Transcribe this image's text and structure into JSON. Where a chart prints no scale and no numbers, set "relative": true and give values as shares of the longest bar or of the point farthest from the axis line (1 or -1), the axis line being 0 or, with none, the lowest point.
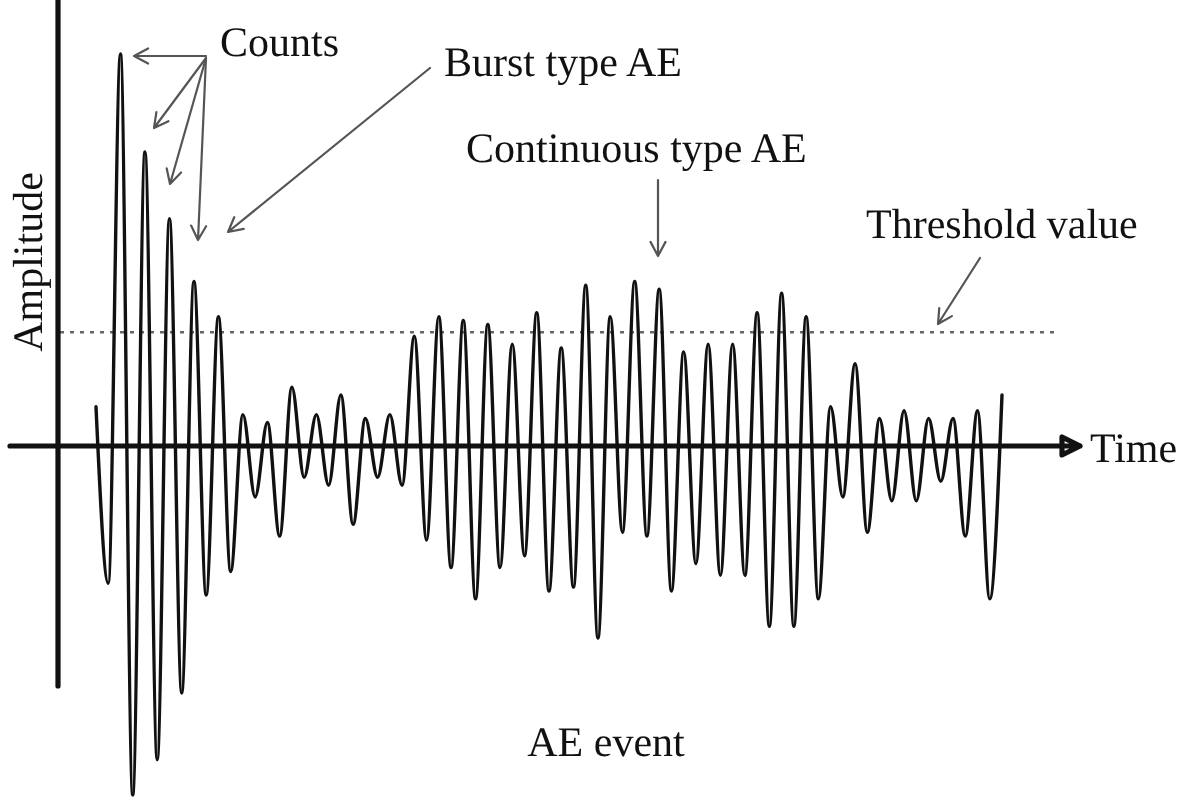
{
  "chart_data": {
    "type": "line",
    "relative": true,
    "xlabel": "Time",
    "ylabel": "Amplitude",
    "line_style": "solid",
    "categories": [
      null,
      null,
      null,
      null,
      null,
      null,
      null,
      null,
      null,
      null,
      null,
      null,
      null,
      null,
      null,
      null,
      null,
      null,
      null,
      null,
      null,
      null,
      null,
      null,
      null,
      null,
      null,
      null,
      null,
      null,
      null,
      null,
      null,
      null,
      null,
      null,
      null,
      null,
      null,
      null,
      null,
      null,
      null,
      null,
      null,
      null,
      null,
      null,
      null,
      null,
      null,
      null,
      null,
      null,
      null,
      null,
      null,
      null,
      null,
      null,
      null,
      null,
      null,
      null,
      null,
      null,
      null,
      null,
      null,
      null,
      null,
      null,
      null,
      null,
      null
    ],
    "series": [
      {
        "color": "#111111",
        "values": [
          0.1,
          -0.35,
          1,
          -0.89,
          0.75,
          -0.8,
          0.58,
          -0.63,
          0.42,
          -0.38,
          0.33,
          -0.32,
          0.08,
          -0.13,
          0.06,
          -0.23,
          0.15,
          -0.08,
          0.08,
          -0.1,
          0.13,
          -0.2,
          0.07,
          -0.08,
          0.08,
          -0.1,
          0.28,
          -0.24,
          0.33,
          -0.31,
          0.32,
          -0.39,
          0.31,
          -0.31,
          0.26,
          -0.28,
          0.34,
          -0.37,
          0.25,
          -0.36,
          0.41,
          -0.49,
          0.33,
          -0.22,
          0.42,
          -0.23,
          0.4,
          -0.37,
          0.24,
          -0.3,
          0.26,
          -0.33,
          0.26,
          -0.33,
          0.34,
          -0.46,
          0.39,
          -0.46,
          0.33,
          -0.39,
          0.1,
          -0.13,
          0.21,
          -0.22,
          0.07,
          -0.14,
          0.09,
          -0.14,
          0.07,
          -0.09,
          0.07,
          -0.23,
          0.09,
          -0.39,
          0.13
        ]
      }
    ],
    "ref_lines": [
      {
        "axis": "y",
        "value": 0.29,
        "label": "Threshold value",
        "color": "#666666",
        "line_style": "dotted"
      }
    ],
    "annotations": [
      "Counts",
      "Burst type AE",
      "Continuous type AE",
      "AE event"
    ]
  }
}
